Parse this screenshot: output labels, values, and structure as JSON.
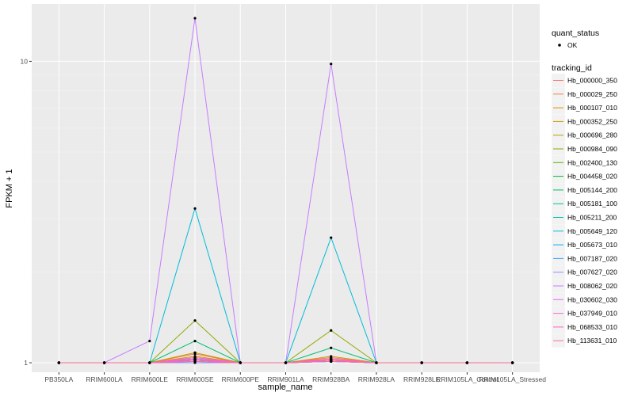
{
  "chart_data": {
    "type": "line",
    "title": "",
    "xlabel": "sample_name",
    "ylabel": "FPKM + 1",
    "y_scale": "log",
    "ylim": [
      0.93,
      15.5
    ],
    "yticks": [
      1,
      10
    ],
    "ytick_labels": [
      "1",
      "10"
    ],
    "grid": true,
    "legend_placement": "right",
    "categories": [
      "PB350LA",
      "RRIM600LA",
      "RRIM600LE",
      "RRIM600SE",
      "RRIM600PE",
      "RRIM901LA",
      "RRIM928BA",
      "RRIM928LA",
      "RRIM928LE",
      "RRIM105LA_Control",
      "RRIM105LA_Stressed"
    ],
    "point_legend": {
      "title": "quant_status",
      "items": [
        "OK"
      ]
    },
    "series_legend_title": "tracking_id",
    "series": [
      {
        "name": "Hb_000000_350",
        "color": "#F8766D",
        "values": [
          1,
          1,
          1,
          1.02,
          1,
          1,
          1.01,
          1,
          1,
          1,
          1
        ]
      },
      {
        "name": "Hb_000029_250",
        "color": "#EE8044",
        "values": [
          1,
          1,
          1,
          1.07,
          1,
          1,
          1.04,
          1,
          1,
          1,
          1
        ]
      },
      {
        "name": "Hb_000107_010",
        "color": "#DE8C00",
        "values": [
          1,
          1,
          1,
          1.05,
          1,
          1,
          1.03,
          1,
          1,
          1,
          1
        ]
      },
      {
        "name": "Hb_000352_250",
        "color": "#C99800",
        "values": [
          1,
          1,
          1,
          1.08,
          1,
          1,
          1.05,
          1,
          1,
          1,
          1
        ]
      },
      {
        "name": "Hb_000696_280",
        "color": "#B0A100",
        "values": [
          1,
          1,
          1,
          1.04,
          1,
          1,
          1.02,
          1,
          1,
          1,
          1
        ]
      },
      {
        "name": "Hb_000984_090",
        "color": "#8EAB00",
        "values": [
          1,
          1,
          1,
          1.38,
          1,
          1,
          1.28,
          1,
          1,
          1,
          1
        ]
      },
      {
        "name": "Hb_002400_130",
        "color": "#5AB300",
        "values": [
          1,
          1,
          1,
          1.03,
          1,
          1,
          1.02,
          1,
          1,
          1,
          1
        ]
      },
      {
        "name": "Hb_004458_020",
        "color": "#00BA38",
        "values": [
          1,
          1,
          1,
          1.02,
          1,
          1,
          1.01,
          1,
          1,
          1,
          1
        ]
      },
      {
        "name": "Hb_005144_200",
        "color": "#00BE70",
        "values": [
          1,
          1,
          1,
          1.18,
          1,
          1,
          1.12,
          1,
          1,
          1,
          1
        ]
      },
      {
        "name": "Hb_005181_100",
        "color": "#00BF96",
        "values": [
          1,
          1,
          1,
          1.03,
          1,
          1,
          1.02,
          1,
          1,
          1,
          1
        ]
      },
      {
        "name": "Hb_005211_200",
        "color": "#00C0B8",
        "values": [
          1,
          1,
          1,
          1.02,
          1,
          1,
          1.01,
          1,
          1,
          1,
          1
        ]
      },
      {
        "name": "Hb_005649_120",
        "color": "#00BCD8",
        "values": [
          1,
          1,
          1,
          3.25,
          1,
          1,
          2.6,
          1,
          1,
          1,
          1
        ]
      },
      {
        "name": "Hb_005673_010",
        "color": "#00B0F6",
        "values": [
          1,
          1,
          1,
          1.01,
          1,
          1,
          1.01,
          1,
          1,
          1,
          1
        ]
      },
      {
        "name": "Hb_007187_020",
        "color": "#35A2FF",
        "values": [
          1,
          1,
          1,
          1.02,
          1,
          1,
          1.01,
          1,
          1,
          1,
          1
        ]
      },
      {
        "name": "Hb_007627_020",
        "color": "#9590FF",
        "values": [
          1,
          1,
          1,
          1,
          1,
          1,
          1.01,
          1,
          1,
          1,
          1
        ]
      },
      {
        "name": "Hb_008062_020",
        "color": "#C77CFF",
        "values": [
          1,
          1,
          1.18,
          13.9,
          1,
          1,
          9.8,
          1,
          1,
          1,
          1
        ]
      },
      {
        "name": "Hb_030602_030",
        "color": "#E76BF3",
        "values": [
          1,
          1,
          1,
          1.03,
          1,
          1,
          1.02,
          1,
          1,
          1,
          1
        ]
      },
      {
        "name": "Hb_037949_010",
        "color": "#F763E0",
        "values": [
          1,
          1,
          1,
          1.04,
          1,
          1,
          1.03,
          1,
          1,
          1,
          1
        ]
      },
      {
        "name": "Hb_068533_010",
        "color": "#FF62BC",
        "values": [
          1,
          1,
          1,
          1.02,
          1,
          1,
          1.02,
          1,
          1,
          1,
          1
        ]
      },
      {
        "name": "Hb_113631_010",
        "color": "#FF6C91",
        "values": [
          1,
          1,
          1,
          1.01,
          1,
          1,
          1.01,
          1,
          1,
          1,
          1
        ]
      }
    ]
  }
}
